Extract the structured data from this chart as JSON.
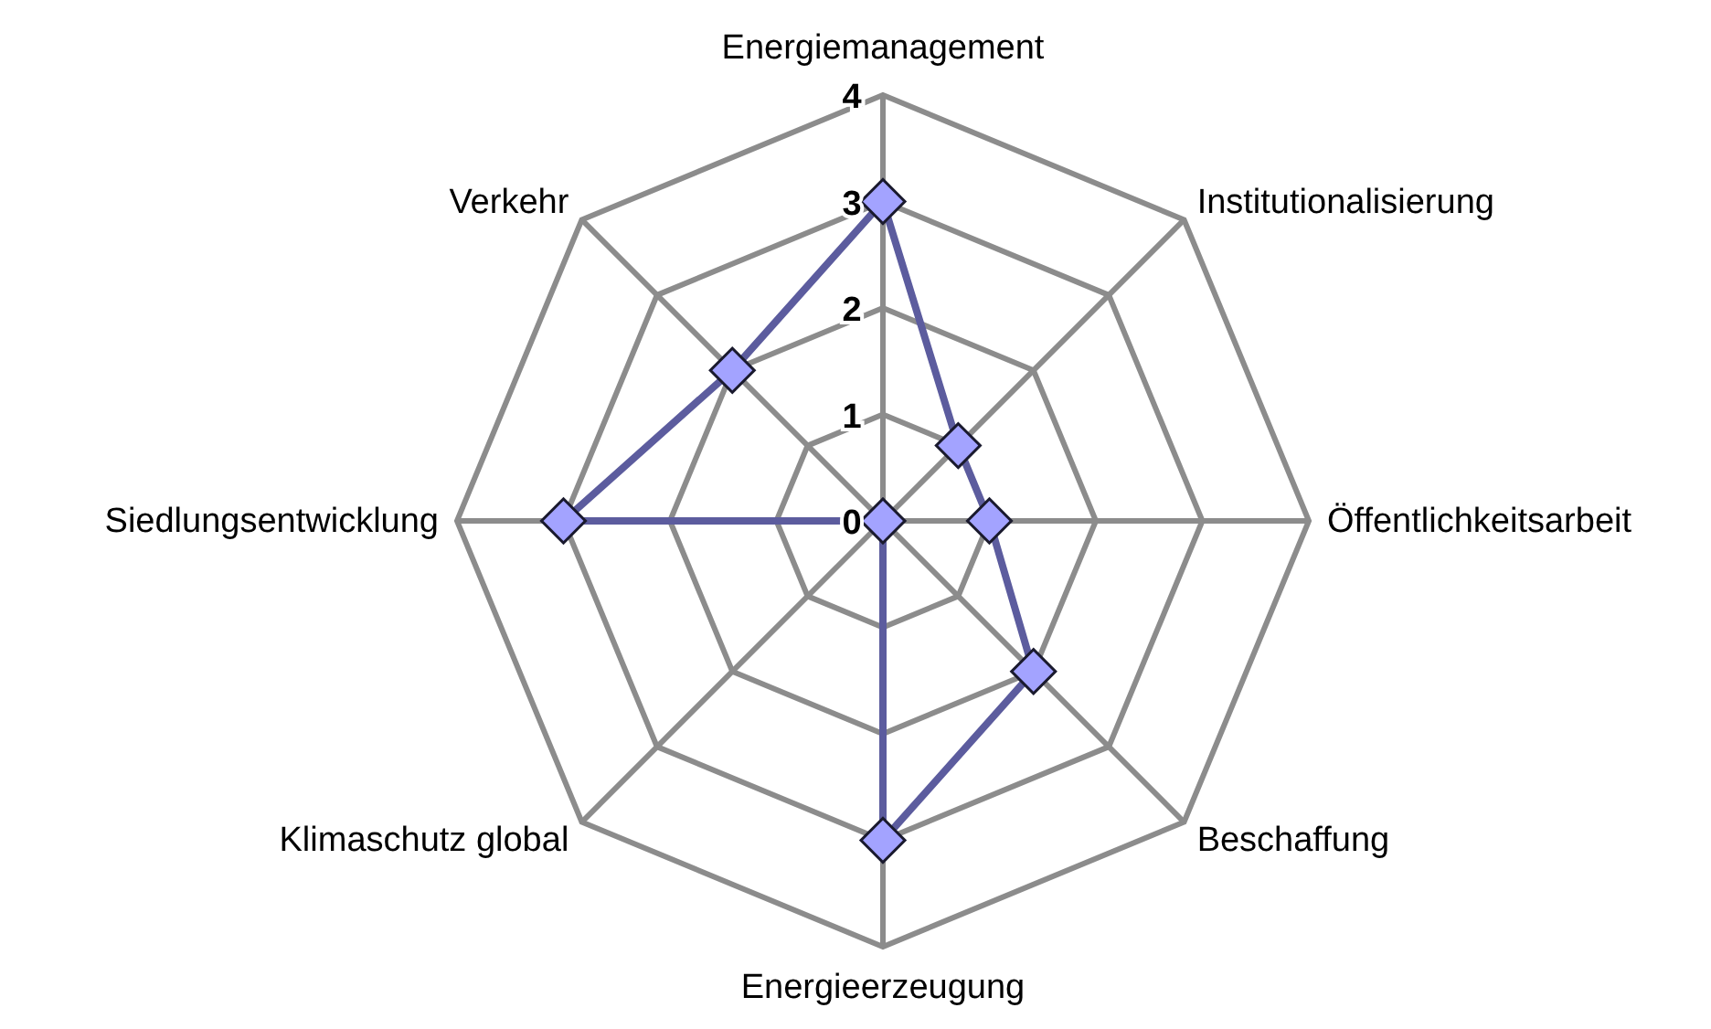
{
  "chart_data": {
    "type": "radar",
    "categories": [
      "Energiemanagement",
      "Institutionalisierung",
      "Öffentlichkeitsarbeit",
      "Beschaffung",
      "Energieerzeugung",
      "Klimaschutz global",
      "Siedlungsentwicklung",
      "Verkehr"
    ],
    "series": [
      {
        "color": "#5c5c9e",
        "values": [
          3,
          1,
          1,
          2,
          3,
          0,
          3,
          2
        ]
      }
    ],
    "ylim": [
      0,
      4
    ],
    "yticks": [
      0,
      1,
      2,
      3,
      4
    ],
    "grid": true,
    "marker": "diamond"
  }
}
